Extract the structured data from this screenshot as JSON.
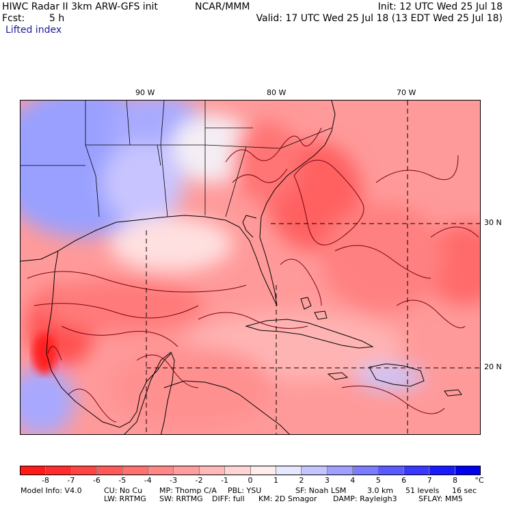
{
  "header": {
    "title": "HIWC Radar II 3km ARW-GFS init",
    "org": "NCAR/MMM",
    "init": "Init: 12 UTC Wed 25 Jul 18",
    "fcst_label": "Fcst:",
    "fcst_value": "5 h",
    "valid": "Valid: 17 UTC Wed 25 Jul 18 (13 EDT Wed 25 Jul 18)",
    "field": "Lifted index"
  },
  "map": {
    "lon_labels": [
      "90 W",
      "80 W",
      "70 W"
    ],
    "lat_labels": [
      "30 N",
      "20 N"
    ]
  },
  "colorbar": {
    "unit": "°C",
    "labels": [
      "-8",
      "-7",
      "-6",
      "-5",
      "-4",
      "-3",
      "-2",
      "-1",
      "0",
      "1",
      "2",
      "3",
      "4",
      "5",
      "6",
      "7",
      "8"
    ],
    "colors": [
      "#ff1a1a",
      "#ff2d2d",
      "#ff4444",
      "#ff5a5a",
      "#ff7070",
      "#ff8787",
      "#ff9e9e",
      "#ffb9b9",
      "#ffd4d4",
      "#ffecec",
      "#e7e7ff",
      "#c4c4ff",
      "#a0a0ff",
      "#7c7cff",
      "#5a5aff",
      "#3838ff",
      "#1a1aff",
      "#0000ee"
    ]
  },
  "footer": {
    "line1": [
      "Model Info: V4.0",
      "CU: No Cu",
      "MP: Thomp C/A",
      "PBL: YSU",
      "SF: Noah LSM",
      "3.0 km",
      "51 levels",
      "16 sec"
    ],
    "line2": [
      "LW: RRTMG",
      "SW: RRTMG",
      "DIFF: full",
      "KM: 2D Smagor",
      "DAMP: Rayleigh3",
      "SFLAY: MM5"
    ]
  }
}
